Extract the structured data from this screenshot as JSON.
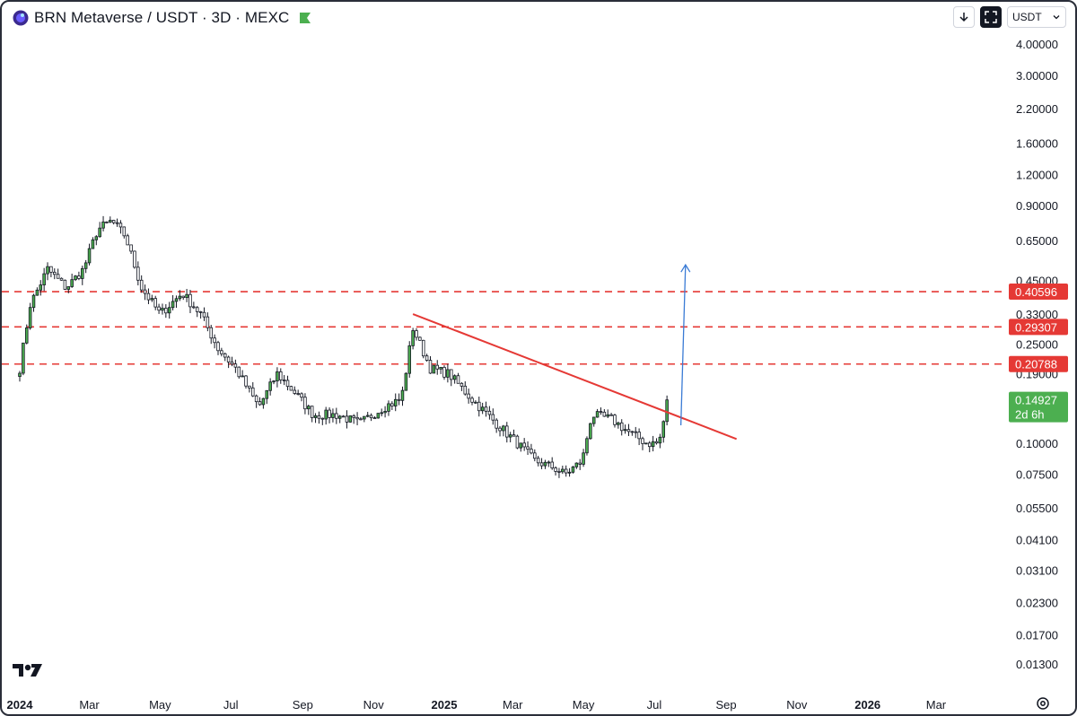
{
  "header": {
    "title": "BRN Metaverse / USDT · 3D · MEXC"
  },
  "controls": {
    "currency_label": "USDT"
  },
  "colors": {
    "up": "#26a69a",
    "up_body": "#4caf50",
    "down": "#131722",
    "resistance": "#e53935",
    "trendline": "#e53935",
    "arrow": "#3a7bd5",
    "current": "#4caf50"
  },
  "chart_data": {
    "type": "candlestick",
    "scale": "log",
    "y_ticks": [
      {
        "value": 4.0,
        "label": "4.00000"
      },
      {
        "value": 3.0,
        "label": "3.00000"
      },
      {
        "value": 2.2,
        "label": "2.20000"
      },
      {
        "value": 1.6,
        "label": "1.60000"
      },
      {
        "value": 1.2,
        "label": "1.20000"
      },
      {
        "value": 0.9,
        "label": "0.90000"
      },
      {
        "value": 0.65,
        "label": "0.65000"
      },
      {
        "value": 0.45,
        "label": "0.45000"
      },
      {
        "value": 0.33,
        "label": "0.33000"
      },
      {
        "value": 0.25,
        "label": "0.25000"
      },
      {
        "value": 0.19,
        "label": "0.19000"
      },
      {
        "value": 0.1,
        "label": "0.10000"
      },
      {
        "value": 0.075,
        "label": "0.07500"
      },
      {
        "value": 0.055,
        "label": "0.05500"
      },
      {
        "value": 0.041,
        "label": "0.04100"
      },
      {
        "value": 0.031,
        "label": "0.03100"
      },
      {
        "value": 0.023,
        "label": "0.02300"
      },
      {
        "value": 0.017,
        "label": "0.01700"
      },
      {
        "value": 0.013,
        "label": "0.01300"
      }
    ],
    "x_ticks": [
      {
        "date": "2024-01-01",
        "label": "2024",
        "bold": true
      },
      {
        "date": "2024-03-01",
        "label": "Mar"
      },
      {
        "date": "2024-05-01",
        "label": "May"
      },
      {
        "date": "2024-07-01",
        "label": "Jul"
      },
      {
        "date": "2024-09-01",
        "label": "Sep"
      },
      {
        "date": "2024-11-01",
        "label": "Nov"
      },
      {
        "date": "2025-01-01",
        "label": "2025",
        "bold": true
      },
      {
        "date": "2025-03-01",
        "label": "Mar"
      },
      {
        "date": "2025-05-01",
        "label": "May"
      },
      {
        "date": "2025-07-01",
        "label": "Jul"
      },
      {
        "date": "2025-09-01",
        "label": "Sep"
      },
      {
        "date": "2025-11-01",
        "label": "Nov"
      },
      {
        "date": "2026-01-01",
        "label": "2026",
        "bold": true
      },
      {
        "date": "2026-03-01",
        "label": "Mar"
      }
    ],
    "resistance_levels": [
      {
        "value": 0.40596,
        "label": "0.40596"
      },
      {
        "value": 0.29307,
        "label": "0.29307"
      },
      {
        "value": 0.20788,
        "label": "0.20788"
      }
    ],
    "current_price": {
      "value": 0.14927,
      "label": "0.14927",
      "countdown": "2d 6h"
    },
    "trendline": {
      "start": {
        "date": "2024-12-05",
        "value": 0.33
      },
      "end": {
        "date": "2025-09-10",
        "value": 0.104
      }
    },
    "arrow": {
      "start": {
        "date": "2025-07-24",
        "value": 0.118
      },
      "end": {
        "date": "2025-07-28",
        "value": 0.52
      }
    },
    "key_closes": [
      {
        "date": "2024-01-01",
        "value": 0.2
      },
      {
        "date": "2024-01-10",
        "value": 0.36
      },
      {
        "date": "2024-01-25",
        "value": 0.5
      },
      {
        "date": "2024-02-10",
        "value": 0.42
      },
      {
        "date": "2024-02-25",
        "value": 0.5
      },
      {
        "date": "2024-03-08",
        "value": 0.72
      },
      {
        "date": "2024-03-20",
        "value": 0.78
      },
      {
        "date": "2024-04-01",
        "value": 0.68
      },
      {
        "date": "2024-04-15",
        "value": 0.42
      },
      {
        "date": "2024-05-01",
        "value": 0.33
      },
      {
        "date": "2024-05-20",
        "value": 0.4
      },
      {
        "date": "2024-06-05",
        "value": 0.33
      },
      {
        "date": "2024-06-20",
        "value": 0.24
      },
      {
        "date": "2024-07-05",
        "value": 0.2
      },
      {
        "date": "2024-07-25",
        "value": 0.14
      },
      {
        "date": "2024-08-10",
        "value": 0.19
      },
      {
        "date": "2024-08-25",
        "value": 0.16
      },
      {
        "date": "2024-09-10",
        "value": 0.13
      },
      {
        "date": "2024-10-01",
        "value": 0.13
      },
      {
        "date": "2024-10-20",
        "value": 0.12
      },
      {
        "date": "2024-11-10",
        "value": 0.14
      },
      {
        "date": "2024-11-25",
        "value": 0.15
      },
      {
        "date": "2024-12-05",
        "value": 0.29
      },
      {
        "date": "2024-12-20",
        "value": 0.2
      },
      {
        "date": "2025-01-05",
        "value": 0.19
      },
      {
        "date": "2025-01-25",
        "value": 0.15
      },
      {
        "date": "2025-02-15",
        "value": 0.12
      },
      {
        "date": "2025-03-05",
        "value": 0.1
      },
      {
        "date": "2025-03-20",
        "value": 0.085
      },
      {
        "date": "2025-04-05",
        "value": 0.08
      },
      {
        "date": "2025-04-15",
        "value": 0.075
      },
      {
        "date": "2025-04-30",
        "value": 0.085
      },
      {
        "date": "2025-05-08",
        "value": 0.13
      },
      {
        "date": "2025-05-25",
        "value": 0.125
      },
      {
        "date": "2025-06-10",
        "value": 0.11
      },
      {
        "date": "2025-06-25",
        "value": 0.1
      },
      {
        "date": "2025-07-05",
        "value": 0.1
      },
      {
        "date": "2025-07-13",
        "value": 0.14927
      }
    ]
  }
}
